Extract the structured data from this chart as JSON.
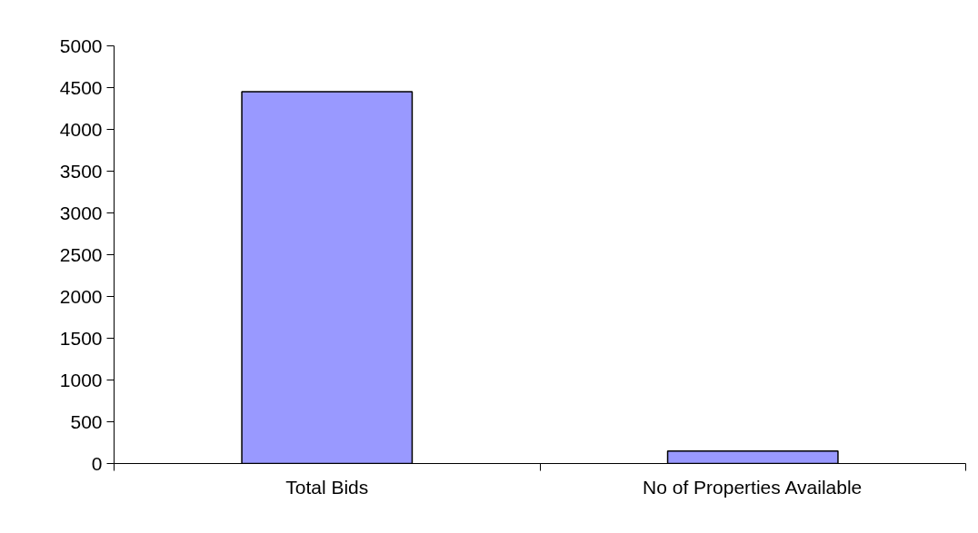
{
  "chart_data": {
    "type": "bar",
    "categories": [
      "Total Bids",
      "No of Properties Available"
    ],
    "values": [
      4450,
      150
    ],
    "color": "#9999ff",
    "ylim": [
      0,
      5000
    ],
    "yticks": [
      0,
      500,
      1000,
      1500,
      2000,
      2500,
      3000,
      3500,
      4000,
      4500,
      5000
    ],
    "grid": false
  }
}
